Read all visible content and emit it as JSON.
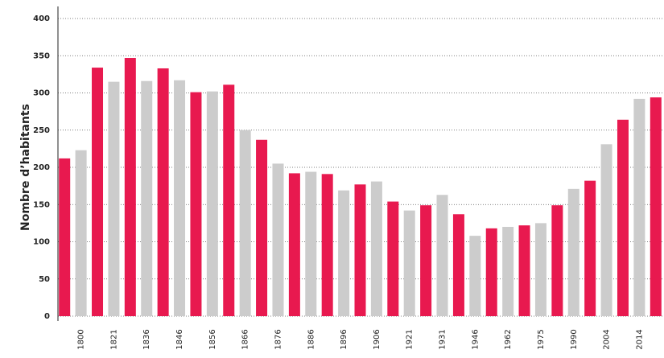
{
  "chart_data": {
    "type": "bar",
    "y_label": "Nombre d’habitants",
    "categories": [
      null,
      "1800",
      null,
      "1821",
      null,
      "1836",
      null,
      "1846",
      null,
      "1856",
      null,
      "1866",
      null,
      "1876",
      null,
      "1886",
      null,
      "1896",
      null,
      "1906",
      null,
      "1921",
      null,
      "1931",
      null,
      "1946",
      null,
      "1962",
      null,
      "1975",
      null,
      "1990",
      null,
      "2004",
      null,
      "2014",
      null
    ],
    "values": [
      212,
      223,
      334,
      315,
      347,
      316,
      333,
      317,
      301,
      302,
      311,
      250,
      237,
      205,
      192,
      194,
      191,
      169,
      177,
      181,
      154,
      142,
      149,
      163,
      137,
      108,
      118,
      120,
      122,
      125,
      149,
      171,
      182,
      231,
      264,
      292,
      294
    ],
    "colors": [
      "#e8194f",
      "#cccccc"
    ],
    "ylim": [
      0,
      400
    ],
    "yticks": [
      0,
      50,
      100,
      150,
      200,
      250,
      300,
      350,
      400
    ],
    "grid": true
  }
}
